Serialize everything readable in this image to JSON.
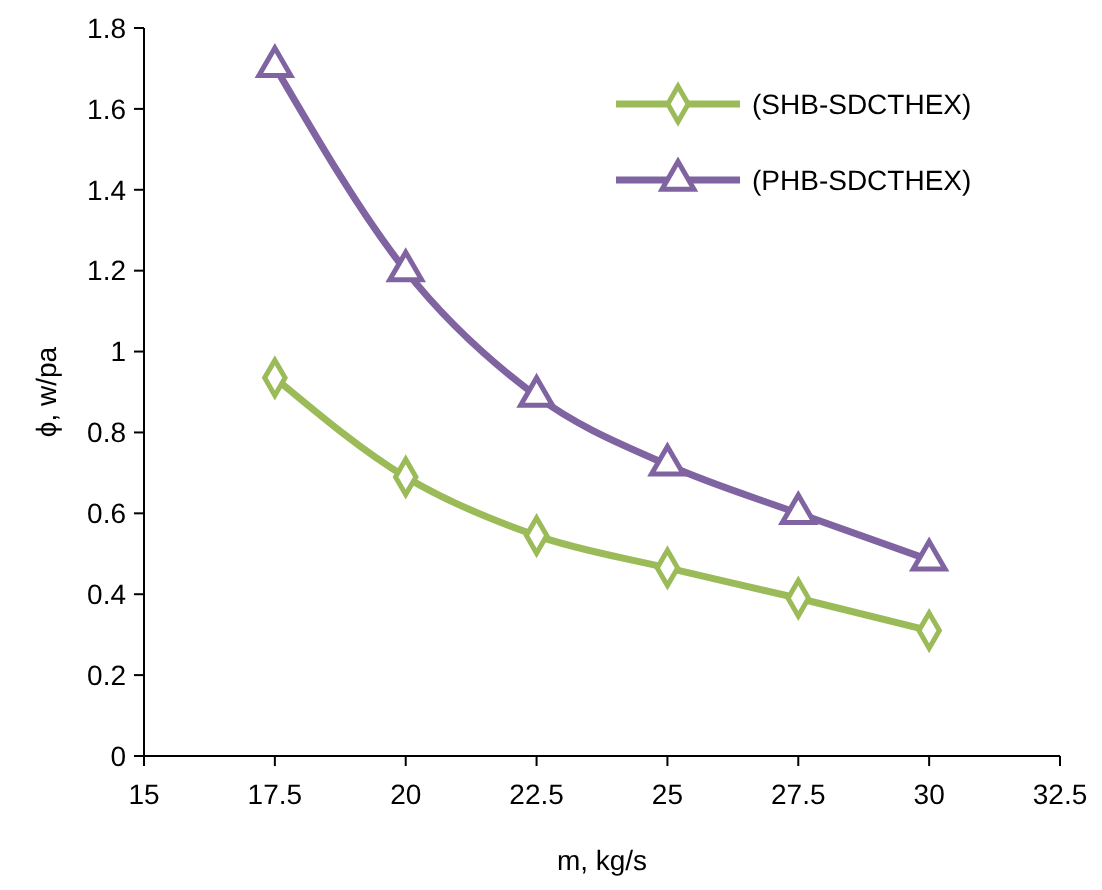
{
  "chart_data": {
    "type": "line",
    "xlabel": "m, kg/s",
    "ylabel": "ϕ, w/pa",
    "x": [
      17.5,
      20,
      22.5,
      25,
      27.5,
      30
    ],
    "series": [
      {
        "name": "(SHB-SDCTHEX)",
        "color": "#9bbb59",
        "marker": "diamond",
        "values": [
          0.935,
          0.69,
          0.545,
          0.465,
          0.39,
          0.31
        ]
      },
      {
        "name": "(PHB-SDCTHEX)",
        "color": "#8064a2",
        "marker": "triangle",
        "values": [
          1.705,
          1.2,
          0.89,
          0.72,
          0.6,
          0.485
        ]
      }
    ],
    "xlim": [
      15,
      32.5
    ],
    "xticks": [
      15,
      17.5,
      20,
      22.5,
      25,
      27.5,
      30,
      32.5
    ],
    "ylim": [
      0,
      1.8
    ],
    "yticks": [
      0,
      0.2,
      0.4,
      0.6,
      0.8,
      1,
      1.2,
      1.4,
      1.6,
      1.8
    ],
    "grid": false,
    "legend": "top right",
    "line_style": "solid"
  }
}
